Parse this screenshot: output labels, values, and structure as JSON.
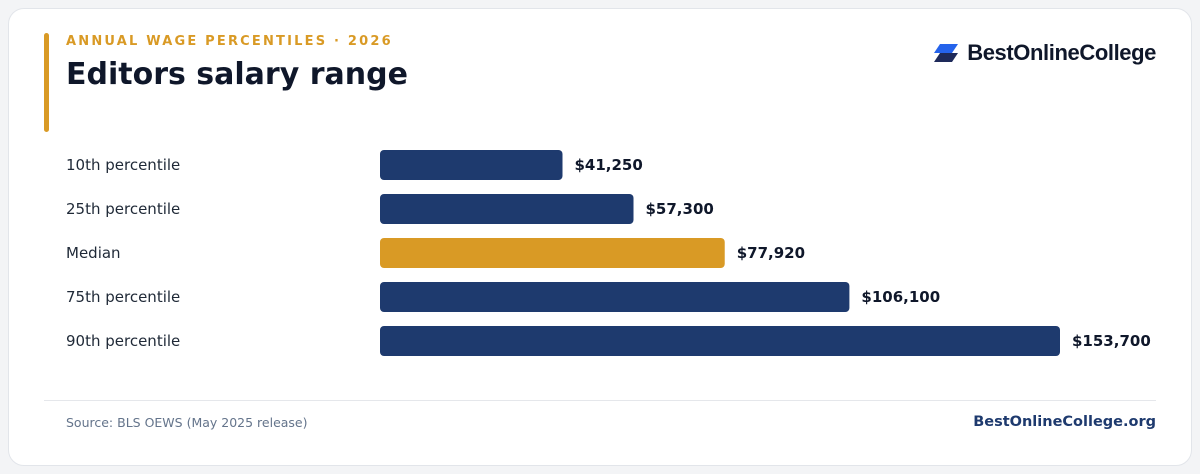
{
  "header": {
    "eyebrow": "ANNUAL WAGE PERCENTILES · 2026",
    "title": "Editors salary range"
  },
  "brand": {
    "name": "BestOnlineCollege",
    "logo_icon": "stacked-parallelograms-icon"
  },
  "footer": {
    "source": "Source: BLS OEWS (May 2025 release)",
    "site": "BestOnlineCollege.org"
  },
  "colors": {
    "accent": "#d99a25",
    "navy": "#1e3a6e",
    "logo_blue": "#2563eb",
    "logo_dark": "#1e2a5a",
    "footer_brand": "#1e3a6e"
  },
  "chart_data": {
    "type": "bar",
    "orientation": "horizontal",
    "categories": [
      "10th percentile",
      "25th percentile",
      "Median",
      "75th percentile",
      "90th percentile"
    ],
    "values": [
      41250,
      57300,
      77920,
      106100,
      153700
    ],
    "value_labels": [
      "$41,250",
      "$57,300",
      "$77,920",
      "$106,100",
      "$153,700"
    ],
    "highlight": "Median",
    "xlim": [
      0,
      153700
    ],
    "grid": false,
    "title": "",
    "xlabel": "",
    "ylabel": ""
  }
}
